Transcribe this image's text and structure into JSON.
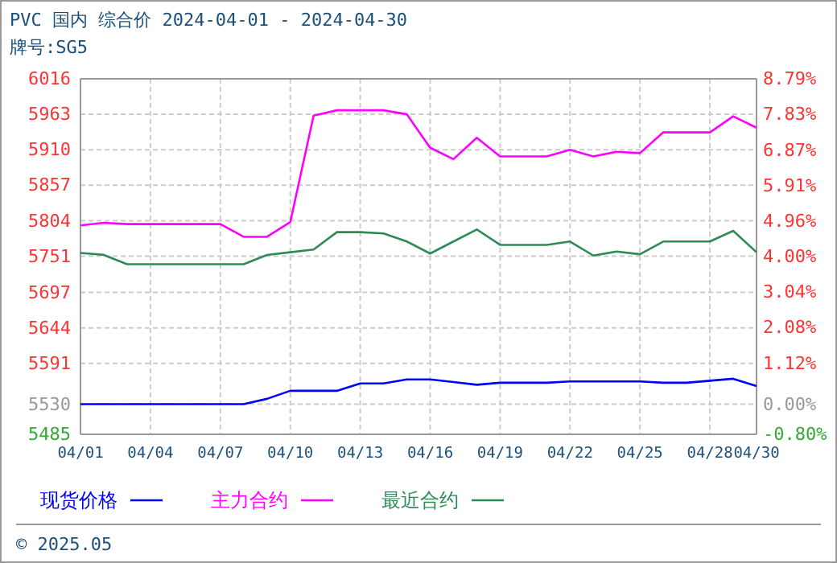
{
  "chart_data": {
    "type": "line",
    "title": "PVC 国内 综合价 2024-04-01 - 2024-04-30",
    "subtitle": "牌号:SG5",
    "x": [
      "2024-04-01",
      "2024-04-02",
      "2024-04-03",
      "2024-04-04",
      "2024-04-05",
      "2024-04-06",
      "2024-04-07",
      "2024-04-08",
      "2024-04-09",
      "2024-04-10",
      "2024-04-11",
      "2024-04-12",
      "2024-04-13",
      "2024-04-14",
      "2024-04-15",
      "2024-04-16",
      "2024-04-17",
      "2024-04-18",
      "2024-04-19",
      "2024-04-20",
      "2024-04-21",
      "2024-04-22",
      "2024-04-23",
      "2024-04-24",
      "2024-04-25",
      "2024-04-26",
      "2024-04-27",
      "2024-04-28",
      "2024-04-29",
      "2024-04-30"
    ],
    "series": [
      {
        "name": "现货价格",
        "color": "#0000ff",
        "values": [
          5530,
          5530,
          5530,
          5530,
          5530,
          5530,
          5530,
          5530,
          5538,
          5550,
          5550,
          5550,
          5561,
          5561,
          5567,
          5567,
          5563,
          5559,
          5562,
          5562,
          5562,
          5564,
          5564,
          5564,
          5564,
          5562,
          5562,
          5565,
          5568,
          5557
        ]
      },
      {
        "name": "主力合约",
        "color": "#ff00ff",
        "values": [
          5797,
          5801,
          5799,
          5799,
          5799,
          5799,
          5799,
          5780,
          5780,
          5802,
          5961,
          5969,
          5969,
          5969,
          5963,
          5913,
          5896,
          5928,
          5900,
          5900,
          5900,
          5910,
          5900,
          5907,
          5905,
          5936,
          5936,
          5936,
          5960,
          5943
        ]
      },
      {
        "name": "最近合约",
        "color": "#2e8b57",
        "values": [
          5756,
          5753,
          5739,
          5739,
          5739,
          5739,
          5739,
          5739,
          5753,
          5757,
          5761,
          5787,
          5787,
          5785,
          5773,
          5755,
          5773,
          5791,
          5768,
          5768,
          5768,
          5773,
          5752,
          5758,
          5754,
          5773,
          5773,
          5773,
          5789,
          5757
        ]
      }
    ],
    "xlim": [
      "2024-04-01",
      "2024-04-30"
    ],
    "xticks": [
      {
        "value": "2024-04-01",
        "label": "04/01"
      },
      {
        "value": "2024-04-04",
        "label": "04/04"
      },
      {
        "value": "2024-04-07",
        "label": "04/07"
      },
      {
        "value": "2024-04-10",
        "label": "04/10"
      },
      {
        "value": "2024-04-13",
        "label": "04/13"
      },
      {
        "value": "2024-04-16",
        "label": "04/16"
      },
      {
        "value": "2024-04-19",
        "label": "04/19"
      },
      {
        "value": "2024-04-22",
        "label": "04/22"
      },
      {
        "value": "2024-04-25",
        "label": "04/25"
      },
      {
        "value": "2024-04-28",
        "label": "04/28"
      },
      {
        "value": "2024-04-30",
        "label": "04/30"
      }
    ],
    "ylim": [
      5485,
      6016
    ],
    "yticks": [
      5485,
      5530,
      5591,
      5644,
      5697,
      5751,
      5804,
      5857,
      5910,
      5963,
      6016
    ],
    "y2lim": [
      -0.8,
      8.79
    ],
    "y2ticks": [
      {
        "value": -0.8,
        "label": "-0.80%"
      },
      {
        "value": 0,
        "label": "0.00%"
      },
      {
        "value": 1.12,
        "label": "1.12%"
      },
      {
        "value": 2.08,
        "label": "2.08%"
      },
      {
        "value": 3.04,
        "label": "3.04%"
      },
      {
        "value": 4,
        "label": "4.00%"
      },
      {
        "value": 4.96,
        "label": "4.96%"
      },
      {
        "value": 5.91,
        "label": "5.91%"
      },
      {
        "value": 6.87,
        "label": "6.87%"
      },
      {
        "value": 7.83,
        "label": "7.83%"
      },
      {
        "value": 8.79,
        "label": "8.79%"
      }
    ],
    "grid": true,
    "legend": "bottom",
    "line_style": "solid",
    "annotations": [
      "© 2025.05"
    ]
  }
}
